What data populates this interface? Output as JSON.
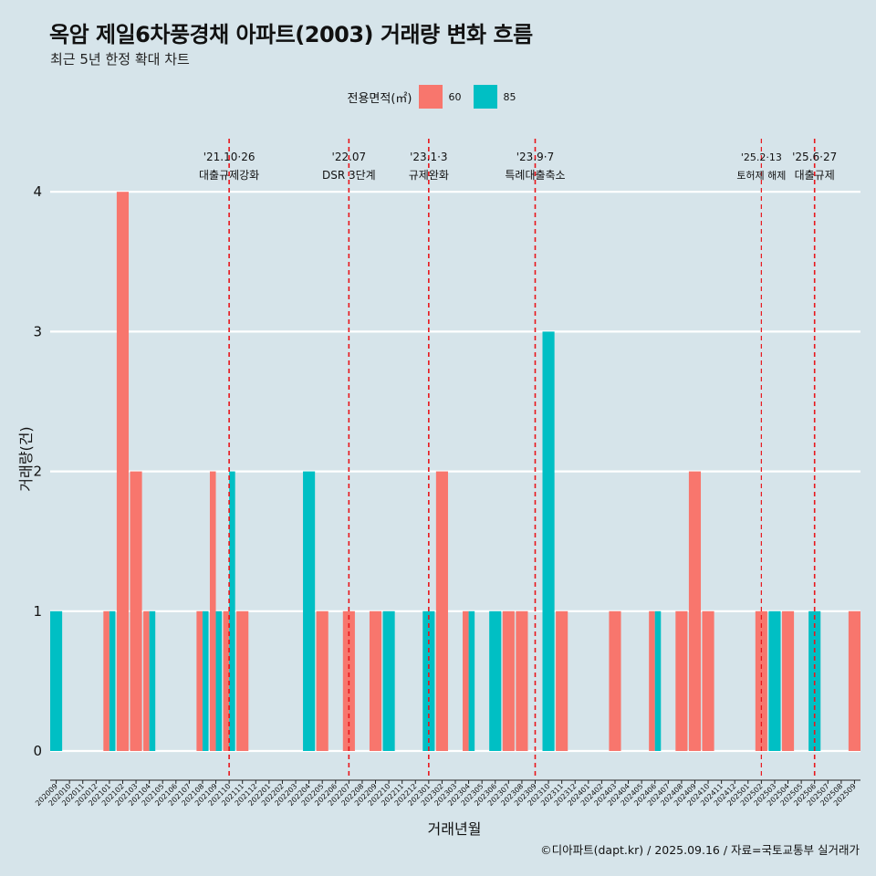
{
  "header": {
    "title": "옥암 제일6차풍경채 아파트(2003) 거래량 변화 흐름",
    "subtitle": "최근 5년 한정 확대 차트"
  },
  "legend": {
    "title": "전용면적(㎡)",
    "items": [
      {
        "label": "60",
        "color": "#f8766d"
      },
      {
        "label": "85",
        "color": "#00bfc4"
      }
    ]
  },
  "caption": "©디아파트(dapt.kr) / 2025.09.16 / 자료=국토교통부 실거래가",
  "chart_data": {
    "type": "bar",
    "title": "옥암 제일6차풍경채 아파트(2003) 거래량 변화 흐름",
    "subtitle": "최근 5년 한정 확대 차트",
    "xlabel": "거래년월",
    "ylabel": "거래량(건)",
    "ylim": [
      0,
      4
    ],
    "yticks": [
      0,
      1,
      2,
      3,
      4
    ],
    "grid": true,
    "legend_position": "top",
    "categories": [
      "202009",
      "202010",
      "202011",
      "202012",
      "202101",
      "202102",
      "202103",
      "202104",
      "202105",
      "202106",
      "202107",
      "202108",
      "202109",
      "202110",
      "202111",
      "202112",
      "202201",
      "202202",
      "202203",
      "202204",
      "202205",
      "202206",
      "202207",
      "202208",
      "202209",
      "202210",
      "202211",
      "202212",
      "202301",
      "202302",
      "202303",
      "202304",
      "202305",
      "202306",
      "202307",
      "202308",
      "202309",
      "202310",
      "202311",
      "202312",
      "202401",
      "202402",
      "202403",
      "202404",
      "202405",
      "202406",
      "202407",
      "202408",
      "202409",
      "202410",
      "202411",
      "202412",
      "202501",
      "202502",
      "202503",
      "202504",
      "202505",
      "202506",
      "202507",
      "202508",
      "202509"
    ],
    "series": [
      {
        "name": "60",
        "color": "#f8766d",
        "values": [
          0,
          0,
          0,
          0,
          1,
          4,
          2,
          1,
          0,
          0,
          0,
          1,
          2,
          1,
          1,
          0,
          0,
          0,
          0,
          0,
          1,
          0,
          1,
          0,
          1,
          0,
          0,
          0,
          0,
          2,
          0,
          1,
          0,
          0,
          1,
          1,
          0,
          0,
          1,
          0,
          0,
          0,
          1,
          0,
          0,
          1,
          0,
          1,
          2,
          1,
          0,
          0,
          0,
          1,
          0,
          1,
          0,
          0,
          0,
          0,
          1
        ]
      },
      {
        "name": "85",
        "color": "#00bfc4",
        "values": [
          1,
          0,
          0,
          0,
          1,
          0,
          0,
          1,
          0,
          0,
          0,
          1,
          1,
          2,
          0,
          0,
          0,
          0,
          0,
          2,
          0,
          0,
          0,
          0,
          0,
          1,
          0,
          0,
          1,
          0,
          0,
          1,
          0,
          1,
          0,
          0,
          0,
          3,
          0,
          0,
          0,
          0,
          0,
          0,
          0,
          1,
          0,
          0,
          0,
          0,
          0,
          0,
          0,
          0,
          1,
          0,
          0,
          1,
          0,
          0,
          0
        ]
      }
    ],
    "annotations": [
      {
        "category": "202110",
        "date": "'21.10·26",
        "label": "대출규제강화"
      },
      {
        "category": "202207",
        "date": "'22.07",
        "label": "DSR 3단계"
      },
      {
        "category": "202301",
        "date": "'23.1·3",
        "label": "규제완화"
      },
      {
        "category": "202309",
        "date": "'23.9·7",
        "label": "특례대출축소"
      },
      {
        "category": "202502",
        "date": "'25.2·13",
        "label": "토허제 해제"
      },
      {
        "category": "202506",
        "date": "'25.6·27",
        "label": "대출규제"
      }
    ]
  }
}
